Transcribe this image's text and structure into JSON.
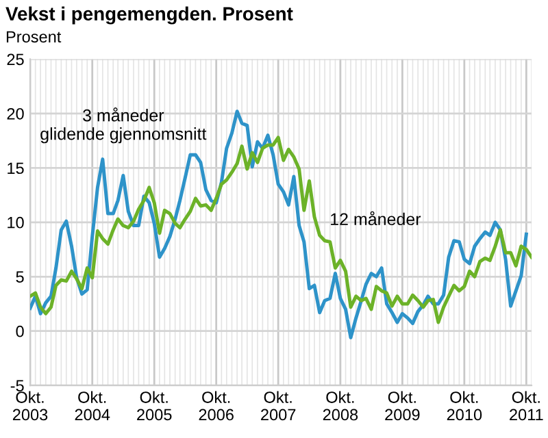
{
  "chart_data": {
    "type": "line",
    "title": "Vekst i pengemengden. Prosent",
    "ylabel": "Prosent",
    "x": [
      "2003-10",
      "2003-11",
      "2003-12",
      "2004-01",
      "2004-02",
      "2004-03",
      "2004-04",
      "2004-05",
      "2004-06",
      "2004-07",
      "2004-08",
      "2004-09",
      "2004-10",
      "2004-11",
      "2004-12",
      "2005-01",
      "2005-02",
      "2005-03",
      "2005-04",
      "2005-05",
      "2005-06",
      "2005-07",
      "2005-08",
      "2005-09",
      "2005-10",
      "2005-11",
      "2005-12",
      "2006-01",
      "2006-02",
      "2006-03",
      "2006-04",
      "2006-05",
      "2006-06",
      "2006-07",
      "2006-08",
      "2006-09",
      "2006-10",
      "2006-11",
      "2006-12",
      "2007-01",
      "2007-02",
      "2007-03",
      "2007-04",
      "2007-05",
      "2007-06",
      "2007-07",
      "2007-08",
      "2007-09",
      "2007-10",
      "2007-11",
      "2007-12",
      "2008-01",
      "2008-02",
      "2008-03",
      "2008-04",
      "2008-05",
      "2008-06",
      "2008-07",
      "2008-08",
      "2008-09",
      "2008-10",
      "2008-11",
      "2008-12",
      "2009-01",
      "2009-02",
      "2009-03",
      "2009-04",
      "2009-05",
      "2009-06",
      "2009-07",
      "2009-08",
      "2009-09",
      "2009-10",
      "2009-11",
      "2009-12",
      "2010-01",
      "2010-02",
      "2010-03",
      "2010-04",
      "2010-05",
      "2010-06",
      "2010-07",
      "2010-08",
      "2010-09",
      "2010-10",
      "2010-11",
      "2010-12",
      "2011-01",
      "2011-02",
      "2011-03",
      "2011-04",
      "2011-05",
      "2011-06",
      "2011-07",
      "2011-08",
      "2011-09",
      "2011-10",
      "2011-11"
    ],
    "series": [
      {
        "name": "3 måneder\nglidende gjennomsnitt",
        "color": "#2e93c9",
        "values": [
          2.1,
          3.2,
          1.6,
          2.6,
          3.2,
          5.8,
          9.3,
          10.1,
          7.8,
          4.9,
          3.4,
          3.8,
          8.7,
          13.2,
          15.8,
          10.8,
          10.8,
          12.0,
          14.3,
          11.0,
          9.7,
          9.7,
          12.4,
          11.8,
          9.9,
          6.8,
          7.6,
          8.7,
          10.3,
          12.0,
          14.1,
          16.2,
          16.2,
          15.5,
          13.0,
          12.0,
          11.8,
          13.7,
          16.8,
          18.2,
          20.2,
          19.1,
          18.9,
          15.1,
          17.4,
          16.8,
          18.0,
          16.2,
          13.5,
          12.8,
          11.6,
          14.2,
          9.7,
          8.2,
          3.9,
          4.2,
          1.7,
          2.8,
          3.0,
          5.3,
          3.0,
          2.0,
          -0.6,
          1.2,
          2.8,
          4.3,
          5.3,
          5.0,
          5.8,
          2.5,
          1.7,
          0.8,
          1.6,
          1.2,
          0.7,
          1.8,
          2.4,
          3.2,
          2.5,
          2.5,
          3.3,
          6.8,
          8.3,
          8.2,
          6.6,
          6.2,
          7.8,
          8.5,
          9.1,
          8.8,
          10.0,
          9.3,
          6.6,
          2.3,
          3.7,
          5.1,
          8.9,
          null
        ]
      },
      {
        "name": "12 måneder",
        "color": "#6cb228",
        "values": [
          3.2,
          3.5,
          2.2,
          1.6,
          2.2,
          4.2,
          4.7,
          4.6,
          5.5,
          4.8,
          3.9,
          5.8,
          4.9,
          9.2,
          8.5,
          8.0,
          9.3,
          10.3,
          9.7,
          9.5,
          10.1,
          11.2,
          12.0,
          13.2,
          11.8,
          9.0,
          11.1,
          10.8,
          9.9,
          9.5,
          10.3,
          11.0,
          12.2,
          11.5,
          11.6,
          11.1,
          12.2,
          13.5,
          13.9,
          14.6,
          15.4,
          17.0,
          14.9,
          16.4,
          15.5,
          16.8,
          17.1,
          17.1,
          17.8,
          15.7,
          16.7,
          16.0,
          14.9,
          11.1,
          13.8,
          10.5,
          8.8,
          8.3,
          8.2,
          5.8,
          6.5,
          5.5,
          2.2,
          3.2,
          2.8,
          3.0,
          2.0,
          4.1,
          3.7,
          3.5,
          2.3,
          3.2,
          2.5,
          2.5,
          3.3,
          2.8,
          2.2,
          2.8,
          2.9,
          0.8,
          2.2,
          3.2,
          4.2,
          3.7,
          4.1,
          5.5,
          5.0,
          6.4,
          6.7,
          6.5,
          7.8,
          9.3,
          7.2,
          7.2,
          6.0,
          7.8,
          7.5,
          6.8
        ]
      }
    ],
    "xlim": [
      "2003-10",
      "2011-11"
    ],
    "xticks": [
      {
        "value": "2003-10",
        "label": "Okt.\n2003"
      },
      {
        "value": "2004-10",
        "label": "Okt.\n2004"
      },
      {
        "value": "2005-10",
        "label": "Okt.\n2005"
      },
      {
        "value": "2006-10",
        "label": "Okt.\n2006"
      },
      {
        "value": "2007-10",
        "label": "Okt.\n2007"
      },
      {
        "value": "2008-10",
        "label": "Okt.\n2008"
      },
      {
        "value": "2009-10",
        "label": "Okt.\n2009"
      },
      {
        "value": "2010-10",
        "label": "Okt.\n2010"
      },
      {
        "value": "2011-10",
        "label": "Okt.\n2011"
      }
    ],
    "ylim": [
      -5,
      25
    ],
    "yticks": [
      -5,
      0,
      5,
      10,
      15,
      20,
      25
    ],
    "grid": true,
    "legend": false,
    "marker": "none",
    "line_style": "solid"
  }
}
